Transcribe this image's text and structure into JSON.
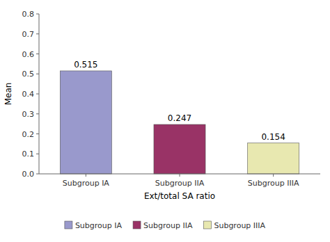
{
  "chart_data": {
    "type": "bar",
    "categories": [
      "Subgroup IA",
      "Subgroup IIA",
      "Subgroup IIIA"
    ],
    "values": [
      0.515,
      0.247,
      0.154
    ],
    "colors": [
      "#9999cc",
      "#993366",
      "#e8e8b0"
    ],
    "xlabel": "Ext/total SA ratio",
    "ylabel": "Mean",
    "ylim": [
      0,
      0.8
    ],
    "yticks": [
      {
        "value": 0,
        "label": "0.0"
      },
      0.1,
      0.2,
      0.3,
      0.4,
      0.5,
      0.6,
      0.7,
      0.8
    ],
    "data_labels": true,
    "grid": false,
    "legend": "bottom"
  }
}
